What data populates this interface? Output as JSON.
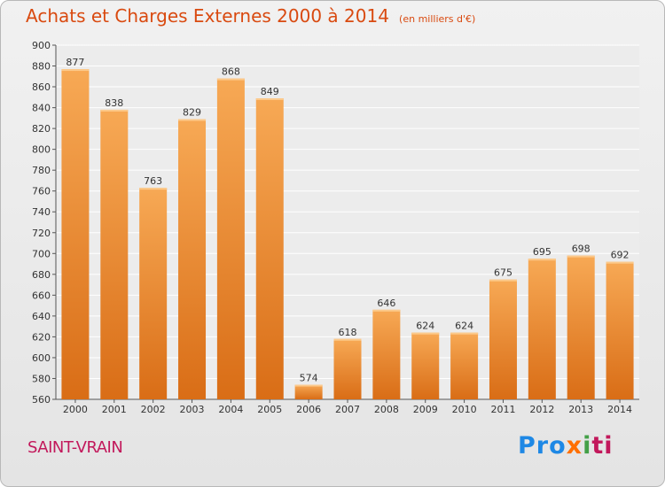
{
  "header": {
    "title": "Achats et Charges Externes 2000 à 2014",
    "unit": "(en milliers d'€)"
  },
  "footer": {
    "commune": "SAINT-VRAIN",
    "logo_parts": [
      "Pro",
      "x",
      "i",
      "ti"
    ]
  },
  "colors": {
    "title": "#d94a10",
    "bar_light": "#f7a955",
    "bar_dark": "#d96d16",
    "commune": "#c2185b"
  },
  "chart_data": {
    "type": "bar",
    "title": "Achats et Charges Externes 2000 à 2014",
    "subtitle": "(en milliers d'€)",
    "categories": [
      "2000",
      "2001",
      "2002",
      "2003",
      "2004",
      "2005",
      "2006",
      "2007",
      "2008",
      "2009",
      "2010",
      "2011",
      "2012",
      "2013",
      "2014"
    ],
    "values": [
      877,
      838,
      763,
      829,
      868,
      849,
      574,
      618,
      646,
      624,
      624,
      675,
      695,
      698,
      692
    ],
    "ylim": [
      560,
      900
    ],
    "yticks": [
      560,
      580,
      600,
      620,
      640,
      660,
      680,
      700,
      720,
      740,
      760,
      780,
      800,
      820,
      840,
      860,
      880,
      900
    ],
    "grid": true,
    "legend": "none"
  }
}
